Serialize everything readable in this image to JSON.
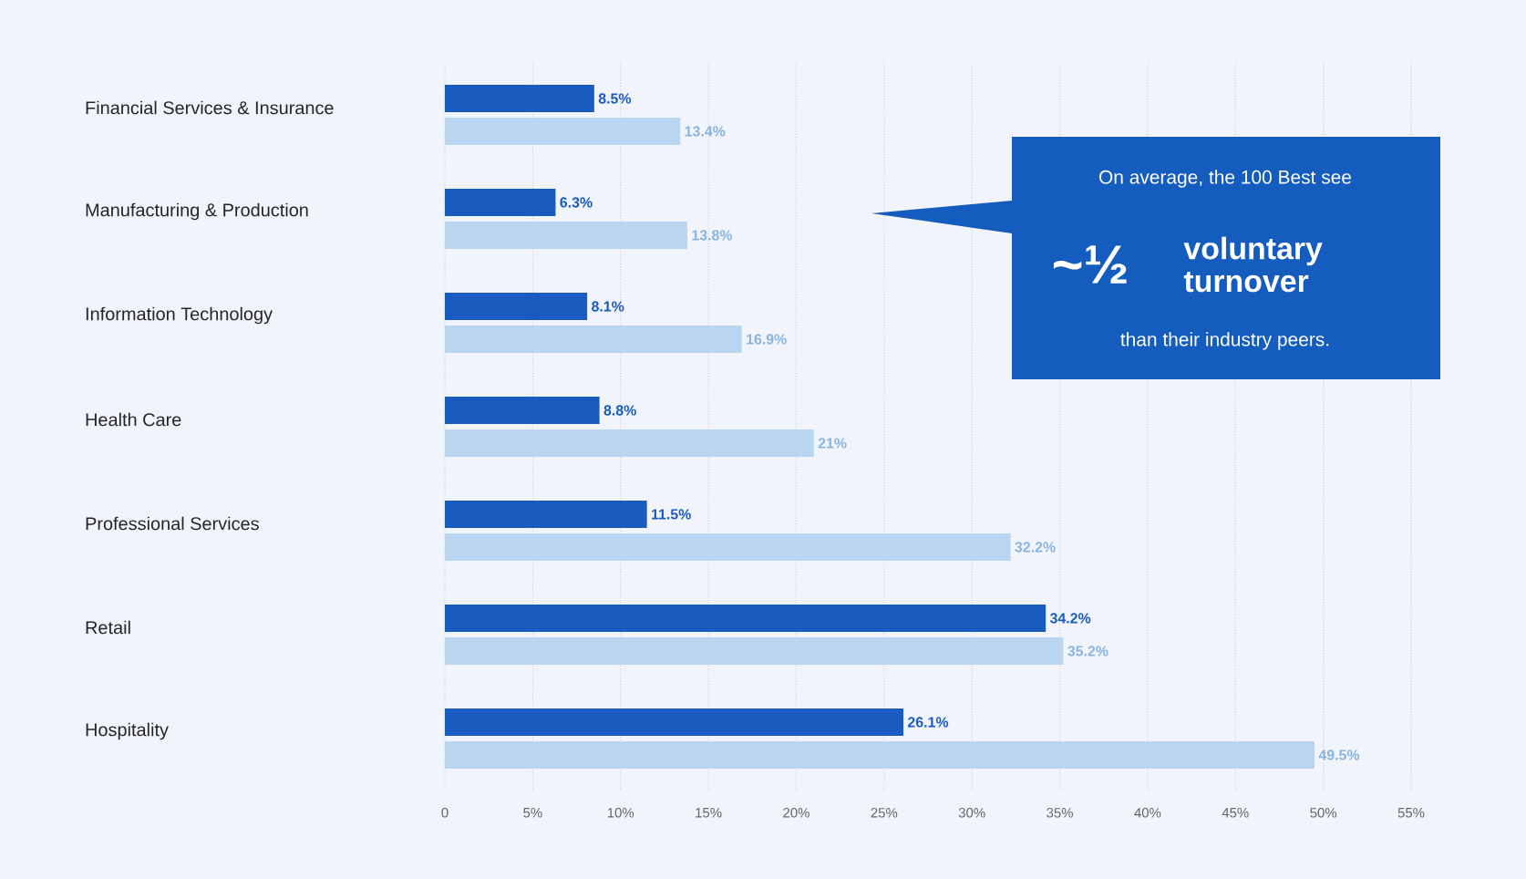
{
  "chart_data": {
    "type": "bar",
    "orientation": "horizontal",
    "grid": "x",
    "categories": [
      "Financial Services & Insurance",
      "Manufacturing & Production",
      "Information Technology",
      "Health Care",
      "Professional Services",
      "Retail",
      "Hospitality"
    ],
    "series": [
      {
        "color": "#1a5bbf",
        "values": [
          8.5,
          6.3,
          8.1,
          8.8,
          11.5,
          34.2,
          26.1
        ],
        "value_labels": [
          "8.5%",
          "6.3%",
          "8.1%",
          "8.8%",
          "11.5%",
          "34.2%",
          "26.1%"
        ]
      },
      {
        "color": "#b9d5ef",
        "values": [
          13.4,
          13.8,
          16.9,
          21,
          32.2,
          35.2,
          49.5
        ],
        "value_labels": [
          "13.4%",
          "13.8%",
          "16.9%",
          "21%",
          "32.2%",
          "35.2%",
          "49.5%"
        ]
      }
    ],
    "xlim": [
      0,
      55
    ],
    "xticks": [
      0,
      {
        "value": 5,
        "label": "5%"
      },
      {
        "value": 10,
        "label": "10%"
      },
      {
        "value": 15,
        "label": "15%"
      },
      {
        "value": 20,
        "label": "20%"
      },
      {
        "value": 25,
        "label": "25%"
      },
      {
        "value": 30,
        "label": "30%"
      },
      {
        "value": 35,
        "label": "35%"
      },
      {
        "value": 40,
        "label": "40%"
      },
      {
        "value": 45,
        "label": "45%"
      },
      {
        "value": 50,
        "label": "50%"
      },
      {
        "value": 55,
        "label": "55%"
      }
    ],
    "annotations": [
      "On average, the 100 Best see",
      "~½",
      "voluntary turnover",
      "than their industry peers."
    ]
  }
}
